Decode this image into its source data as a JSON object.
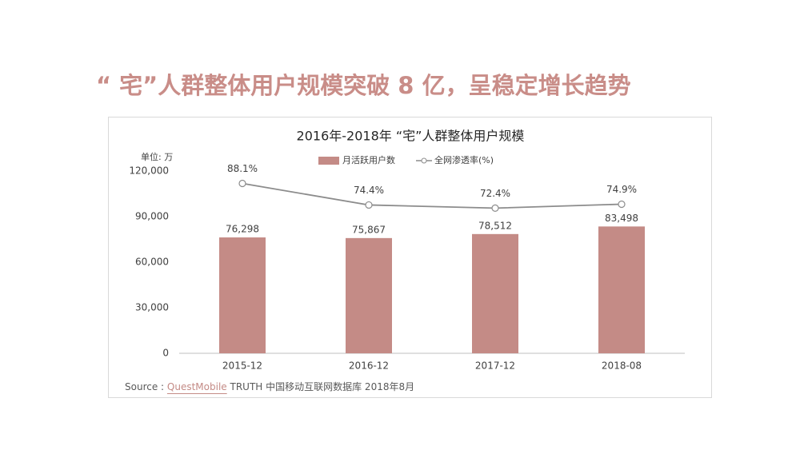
{
  "slide_title": "“ 宅”人群整体用户规模突破 8 亿，呈稳定增长趋势",
  "chart_data": {
    "type": "bar",
    "title": "2016年-2018年 “宅”人群整体用户规模",
    "unit_label": "单位: 万",
    "categories": [
      "2015-12",
      "2016-12",
      "2017-12",
      "2018-08"
    ],
    "series": [
      {
        "name": "月活跃用户数",
        "color": "#c48b86",
        "values": [
          76298,
          75867,
          78512,
          83498
        ],
        "value_labels": [
          "76,298",
          "75,867",
          "78,512",
          "83,498"
        ]
      },
      {
        "name": "全网渗透率(%)",
        "type": "line",
        "axis": "y2",
        "color": "#8c8c8c",
        "values": [
          88.1,
          74.4,
          72.4,
          74.9
        ],
        "value_labels": [
          "88.1%",
          "74.4%",
          "72.4%",
          "74.9%"
        ]
      }
    ],
    "ylim": [
      0,
      120000
    ],
    "yticks": [
      0,
      {
        "value": 30000,
        "label": "30,000"
      },
      {
        "value": 60000,
        "label": "60,000"
      },
      {
        "value": 90000,
        "label": "90,000"
      },
      {
        "value": 120000,
        "label": "120,000"
      }
    ],
    "y2lim": [
      -20,
      96
    ],
    "grid": false
  },
  "source": {
    "prefix": "Source :",
    "brand": "QuestMobile",
    "text": "TRUTH 中国移动互联网数据库 2018年8月"
  }
}
